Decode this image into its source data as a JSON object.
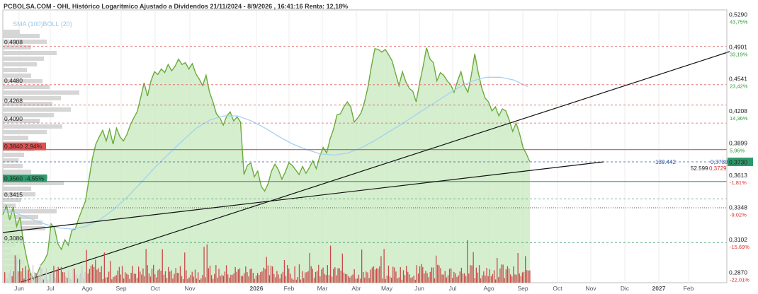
{
  "header": {
    "title": "PCBOLSA.COM - OHL Histórico Logarítmico Ajustado a Dividendos 21/11/2024 - 8/9/2026 , 16:41:16 Renta: 12,18%",
    "indicators": "SMA (100)BOLL (20)"
  },
  "colors": {
    "price_line": "#6aab3a",
    "price_fill": "#ccebc6",
    "sma": "#a5d2ee",
    "volume": "#c94a4a",
    "volume_grey": "#c9c9c9",
    "resistance_red": "#e05050",
    "support_green": "#2e9a6b",
    "trend": "#111111",
    "pct_green": "#2d9b3a",
    "pct_red": "#d83030"
  },
  "chart_data": {
    "type": "line",
    "scale": "log",
    "ylim": [
      0.28,
      0.535
    ],
    "x_labels": [
      "Jun",
      "Jul",
      "Ago",
      "Sep",
      "Oct",
      "Nov",
      "2026",
      "Feb",
      "Mar",
      "Abr",
      "May",
      "Jun",
      "Jul",
      "Ago",
      "Sep",
      "Oct",
      "Nov",
      "Dic",
      "2027",
      "Feb"
    ],
    "right_axis": [
      {
        "price": "0,5290",
        "pct": "43,75%",
        "color": "green"
      },
      {
        "price": "0,4901",
        "pct": "33,19%",
        "color": "green"
      },
      {
        "price": "0,4541",
        "pct": "23,42%",
        "color": "green"
      },
      {
        "price": "0,4208",
        "pct": "14,36%",
        "color": "green"
      },
      {
        "price": "0,3899",
        "pct": "5,96%",
        "color": "green"
      },
      {
        "price": "0,3613",
        "pct": "-1,81%",
        "color": "red"
      },
      {
        "price": "0,3348",
        "pct": "-9,02%",
        "color": "red"
      },
      {
        "price": "0,3102",
        "pct": "-15,69%",
        "color": "red"
      },
      {
        "price": "0,2870",
        "pct": "-22,01%",
        "color": "red"
      }
    ],
    "levels_left": [
      "0,4908",
      "0,4480",
      "0,4268",
      "0,4090",
      "0,3415",
      "0,3080"
    ],
    "resistance": {
      "value": "0,3840",
      "pct": "2,94%"
    },
    "support": {
      "value": "0,3560",
      "pct": "-4,55%"
    },
    "current": {
      "value": "0,3730",
      "label": "0,3730"
    },
    "markers": {
      "mid_label": "139.442",
      "left_value": "52.599",
      "right_value": "0,3729",
      "right_small": "0,3730"
    },
    "series": [
      {
        "name": "OHL",
        "values": [
          0.329,
          0.336,
          0.325,
          0.335,
          0.32,
          0.327,
          0.308,
          0.296,
          0.286,
          0.282,
          0.286,
          0.292,
          0.295,
          0.3,
          0.322,
          0.319,
          0.307,
          0.303,
          0.31,
          0.306,
          0.317,
          0.318,
          0.326,
          0.333,
          0.34,
          0.358,
          0.376,
          0.389,
          0.396,
          0.402,
          0.392,
          0.403,
          0.389,
          0.404,
          0.396,
          0.392,
          0.398,
          0.407,
          0.414,
          0.42,
          0.434,
          0.45,
          0.436,
          0.452,
          0.462,
          0.459,
          0.465,
          0.461,
          0.47,
          0.463,
          0.468,
          0.476,
          0.47,
          0.472,
          0.465,
          0.471,
          0.46,
          0.454,
          0.447,
          0.458,
          0.44,
          0.43,
          0.418,
          0.414,
          0.407,
          0.416,
          0.42,
          0.411,
          0.415,
          0.41,
          0.362,
          0.37,
          0.372,
          0.36,
          0.365,
          0.352,
          0.348,
          0.354,
          0.365,
          0.371,
          0.366,
          0.358,
          0.364,
          0.372,
          0.37,
          0.366,
          0.362,
          0.369,
          0.363,
          0.368,
          0.374,
          0.367,
          0.378,
          0.386,
          0.381,
          0.394,
          0.403,
          0.417,
          0.418,
          0.425,
          0.43,
          0.425,
          0.41,
          0.414,
          0.419,
          0.43,
          0.446,
          0.468,
          0.488,
          0.487,
          0.484,
          0.487,
          0.481,
          0.474,
          0.46,
          0.447,
          0.462,
          0.451,
          0.444,
          0.441,
          0.43,
          0.45,
          0.468,
          0.489,
          0.476,
          0.472,
          0.452,
          0.461,
          0.458,
          0.452,
          0.448,
          0.44,
          0.452,
          0.462,
          0.447,
          0.44,
          0.458,
          0.482,
          0.461,
          0.445,
          0.434,
          0.43,
          0.421,
          0.425,
          0.416,
          0.423,
          0.421,
          0.412,
          0.401,
          0.409,
          0.399,
          0.386,
          0.38,
          0.373
        ]
      },
      {
        "name": "SMA (100)",
        "values": [
          0.333,
          0.33,
          0.326,
          0.322,
          0.319,
          0.318,
          0.32,
          0.325,
          0.333,
          0.343,
          0.355,
          0.368,
          0.38,
          0.392,
          0.404,
          0.412,
          0.416,
          0.416,
          0.411,
          0.404,
          0.396,
          0.389,
          0.384,
          0.38,
          0.379,
          0.381,
          0.386,
          0.393,
          0.401,
          0.409,
          0.418,
          0.427,
          0.436,
          0.445,
          0.452,
          0.456,
          0.456,
          0.453,
          0.446
        ]
      }
    ]
  }
}
